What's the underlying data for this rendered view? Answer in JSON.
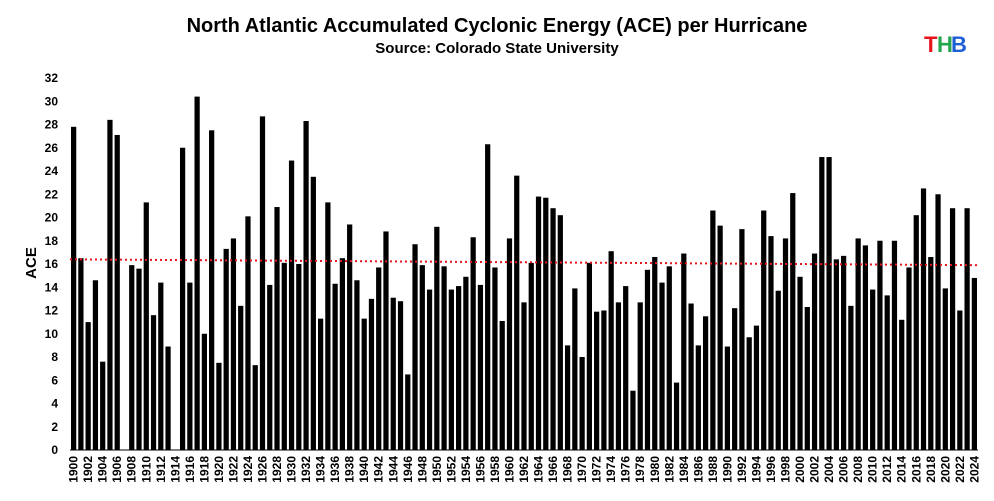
{
  "chart_data": {
    "type": "bar",
    "title": "North Atlantic Accumulated Cyclonic Energy (ACE) per Hurricane",
    "subtitle": "Source: Colorado State University",
    "xlabel": "",
    "ylabel": "ACE",
    "ylim": [
      0,
      32
    ],
    "yticks": [
      0,
      2,
      4,
      6,
      8,
      10,
      12,
      14,
      16,
      18,
      20,
      22,
      24,
      26,
      28,
      30,
      32
    ],
    "grid": false,
    "legend": "none",
    "bar_color": "#000000",
    "trend_color": "#e8141c",
    "trend": {
      "start": 16.4,
      "end": 15.9,
      "style": "dotted"
    },
    "x": [
      1900,
      1901,
      1902,
      1903,
      1904,
      1905,
      1906,
      1907,
      1908,
      1909,
      1910,
      1911,
      1912,
      1913,
      1914,
      1915,
      1916,
      1917,
      1918,
      1919,
      1920,
      1921,
      1922,
      1923,
      1924,
      1925,
      1926,
      1927,
      1928,
      1929,
      1930,
      1931,
      1932,
      1933,
      1934,
      1935,
      1936,
      1937,
      1938,
      1939,
      1940,
      1941,
      1942,
      1943,
      1944,
      1945,
      1946,
      1947,
      1948,
      1949,
      1950,
      1951,
      1952,
      1953,
      1954,
      1955,
      1956,
      1957,
      1958,
      1959,
      1960,
      1961,
      1962,
      1963,
      1964,
      1965,
      1966,
      1967,
      1968,
      1969,
      1970,
      1971,
      1972,
      1973,
      1974,
      1975,
      1976,
      1977,
      1978,
      1979,
      1980,
      1981,
      1982,
      1983,
      1984,
      1985,
      1986,
      1987,
      1988,
      1989,
      1990,
      1991,
      1992,
      1993,
      1994,
      1995,
      1996,
      1997,
      1998,
      1999,
      2000,
      2001,
      2002,
      2003,
      2004,
      2005,
      2006,
      2007,
      2008,
      2009,
      2010,
      2011,
      2012,
      2013,
      2014,
      2015,
      2016,
      2017,
      2018,
      2019,
      2020,
      2021,
      2022,
      2023,
      2024
    ],
    "xtick_labels": [
      "1900",
      "1902",
      "1904",
      "1906",
      "1908",
      "1910",
      "1912",
      "1914",
      "1916",
      "1918",
      "1920",
      "1922",
      "1924",
      "1926",
      "1928",
      "1930",
      "1932",
      "1934",
      "1936",
      "1938",
      "1940",
      "1942",
      "1944",
      "1946",
      "1948",
      "1950",
      "1952",
      "1954",
      "1956",
      "1958",
      "1960",
      "1962",
      "1964",
      "1966",
      "1968",
      "1970",
      "1972",
      "1974",
      "1976",
      "1978",
      "1980",
      "1982",
      "1984",
      "1986",
      "1988",
      "1990",
      "1992",
      "1994",
      "1996",
      "1998",
      "2000",
      "2002",
      "2004",
      "2006",
      "2008",
      "2010",
      "2012",
      "2014",
      "2016",
      "2018",
      "2020",
      "2022",
      "2024"
    ],
    "values": [
      27.8,
      16.5,
      11.0,
      14.6,
      7.6,
      28.4,
      27.1,
      0,
      15.9,
      15.6,
      21.3,
      11.6,
      14.4,
      8.9,
      0,
      26.0,
      14.4,
      30.4,
      10.0,
      27.5,
      7.5,
      17.3,
      18.2,
      12.4,
      20.1,
      7.3,
      28.7,
      14.2,
      20.9,
      16.1,
      24.9,
      16.0,
      28.3,
      23.5,
      11.3,
      21.3,
      14.3,
      16.5,
      19.4,
      14.6,
      11.3,
      13.0,
      15.7,
      18.8,
      13.1,
      12.8,
      6.5,
      17.7,
      15.9,
      13.8,
      19.2,
      15.8,
      13.8,
      14.1,
      14.9,
      18.3,
      14.2,
      26.3,
      15.7,
      11.1,
      18.2,
      23.6,
      12.7,
      16.1,
      21.8,
      21.7,
      20.8,
      20.2,
      9.0,
      13.9,
      8.0,
      16.1,
      11.9,
      12.0,
      17.1,
      12.7,
      14.1,
      5.1,
      12.7,
      15.5,
      16.6,
      14.4,
      15.8,
      5.8,
      16.9,
      12.6,
      9.0,
      11.5,
      20.6,
      19.3,
      8.9,
      12.2,
      19.0,
      9.7,
      10.7,
      20.6,
      18.4,
      13.7,
      18.2,
      22.1,
      14.9,
      12.3,
      16.9,
      25.2,
      25.2,
      16.4,
      16.7,
      12.4,
      18.2,
      17.6,
      13.8,
      18.0,
      13.3,
      18.0,
      11.2,
      15.7,
      20.2,
      22.5,
      16.6,
      22.0,
      13.9,
      20.8,
      12.0,
      20.8,
      14.8
    ]
  },
  "logo": {
    "text": "THB",
    "colors": [
      "#e8141c",
      "#22a84b",
      "#1f5fd6"
    ]
  }
}
